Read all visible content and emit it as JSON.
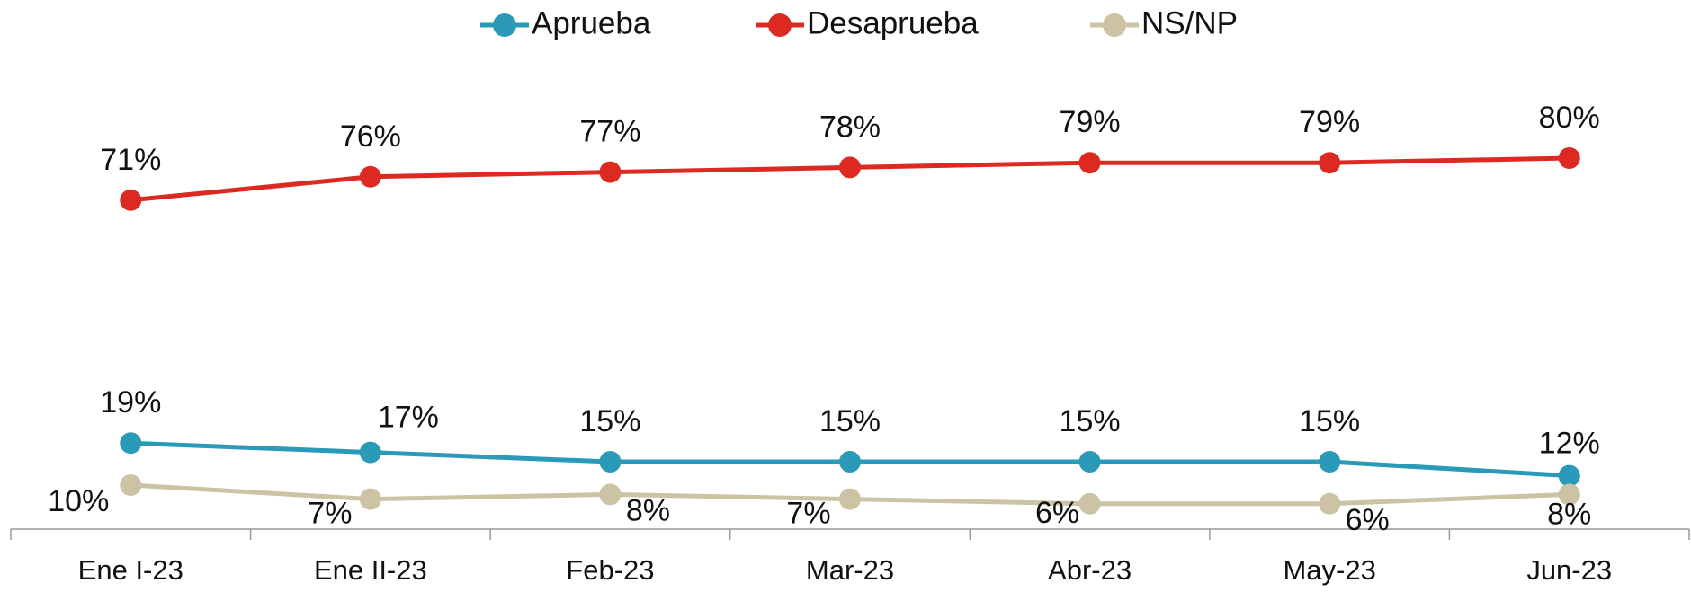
{
  "chart_data": {
    "type": "line",
    "categories": [
      "Ene I-23",
      "Ene II-23",
      "Feb-23",
      "Mar-23",
      "Abr-23",
      "May-23",
      "Jun-23"
    ],
    "ylim": [
      0,
      100
    ],
    "series": [
      {
        "name": "Aprueba",
        "color": "#2a9ab8",
        "values": [
          19,
          17,
          15,
          15,
          15,
          15,
          12
        ],
        "value_labels": [
          "19%",
          "17%",
          "15%",
          "15%",
          "15%",
          "15%",
          "12%"
        ]
      },
      {
        "name": "Desaprueba",
        "color": "#dc2a22",
        "values": [
          71,
          76,
          77,
          78,
          79,
          79,
          80
        ],
        "value_labels": [
          "71%",
          "76%",
          "77%",
          "78%",
          "79%",
          "79%",
          "80%"
        ]
      },
      {
        "name": "NS/NP",
        "color": "#cbc3a3",
        "values": [
          10,
          7,
          8,
          7,
          6,
          6,
          8
        ],
        "value_labels": [
          "10%",
          "7%",
          "8%",
          "7%",
          "6%",
          "6%",
          "8%"
        ]
      }
    ]
  }
}
